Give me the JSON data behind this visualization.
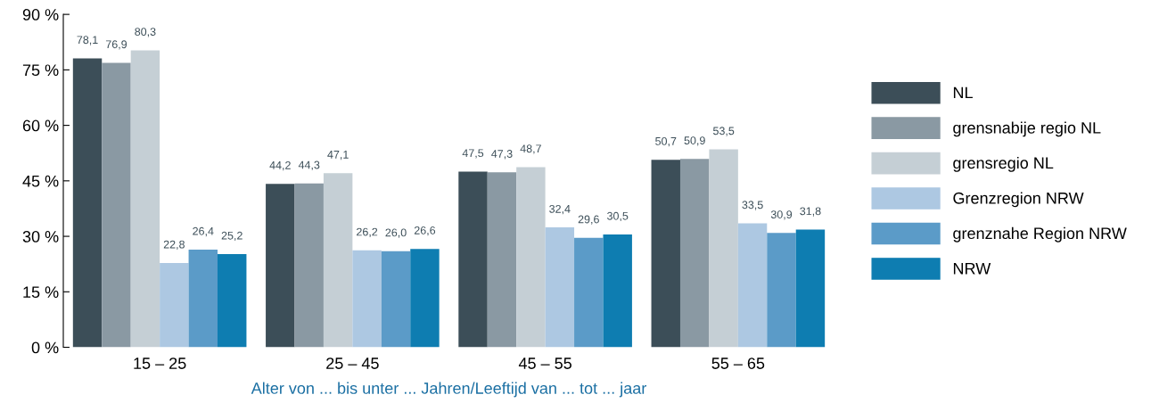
{
  "chart_data": {
    "type": "bar",
    "xlabel": "Alter von ... bis unter ... Jahren/Leeftijd van ... tot ... jaar",
    "categories": [
      "15 – 25",
      "25 – 45",
      "45 – 55",
      "55 – 65"
    ],
    "series": [
      {
        "name": "NL",
        "color": "#3c4e58",
        "values": [
          78.1,
          44.2,
          47.5,
          50.7
        ],
        "value_labels": [
          "78,1",
          "44,2",
          "47,5",
          "50,7"
        ]
      },
      {
        "name": "grensnabije regio NL",
        "color": "#8a99a3",
        "values": [
          76.9,
          44.3,
          47.3,
          50.9
        ],
        "value_labels": [
          "76,9",
          "44,3",
          "47,3",
          "50,9"
        ]
      },
      {
        "name": "grensregio NL",
        "color": "#c5cfd5",
        "values": [
          80.3,
          47.1,
          48.7,
          53.5
        ],
        "value_labels": [
          "80,3",
          "47,1",
          "48,7",
          "53,5"
        ]
      },
      {
        "name": "Grenzregion NRW",
        "color": "#adc8e2",
        "values": [
          22.8,
          26.2,
          32.4,
          33.5
        ],
        "value_labels": [
          "22,8",
          "26,2",
          "32,4",
          "33,5"
        ]
      },
      {
        "name": "grenznahe Region NRW",
        "color": "#5b9bc8",
        "values": [
          26.4,
          26.0,
          29.6,
          30.9
        ],
        "value_labels": [
          "26,4",
          "26,0",
          "29,6",
          "30,9"
        ]
      },
      {
        "name": "NRW",
        "color": "#0e7db1",
        "values": [
          25.2,
          26.6,
          30.5,
          31.8
        ],
        "value_labels": [
          "25,2",
          "26,6",
          "30,5",
          "31,8"
        ]
      }
    ],
    "ylim": [
      0,
      90
    ],
    "yticks": [
      {
        "value": 0,
        "label": "0 %"
      },
      {
        "value": 15,
        "label": "15 %"
      },
      {
        "value": 30,
        "label": "30 %"
      },
      {
        "value": 45,
        "label": "45 %"
      },
      {
        "value": 60,
        "label": "60 %"
      },
      {
        "value": 75,
        "label": "75 %"
      },
      {
        "value": 90,
        "label": "90 %"
      }
    ],
    "grid": false,
    "legend": "right"
  }
}
